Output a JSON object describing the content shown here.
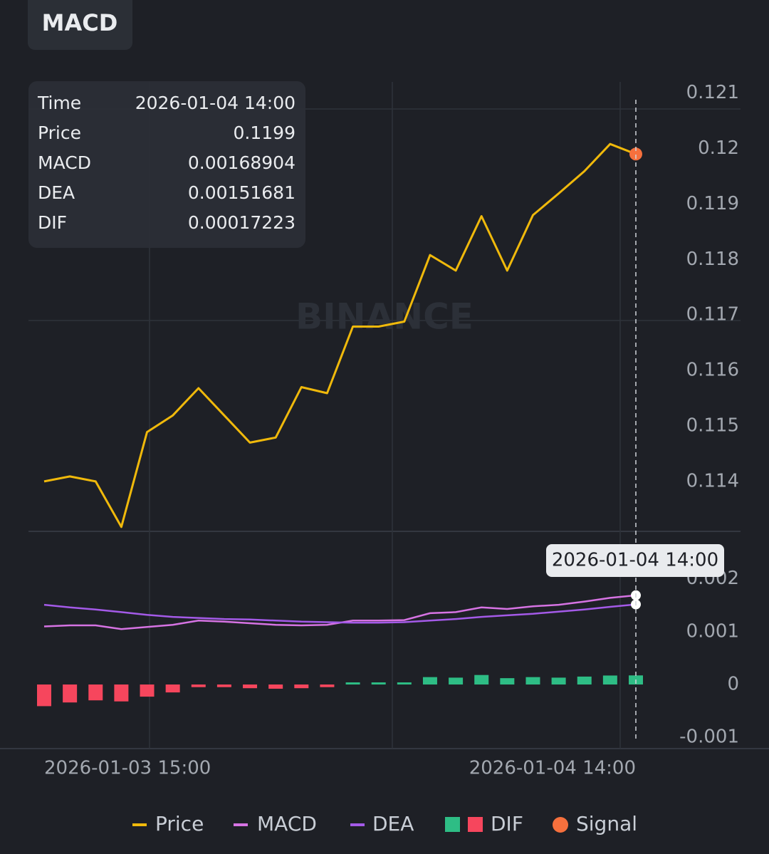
{
  "header": {
    "title": "MACD"
  },
  "watermark": "BINANCE",
  "tooltip": {
    "time_label": "Time"
  },
  "chart_data": [
    {
      "type": "line",
      "categories": [
        "2026-01-03 15:00",
        null,
        null,
        null,
        null,
        null,
        null,
        null,
        null,
        null,
        null,
        null,
        null,
        null,
        null,
        null,
        null,
        null,
        null,
        null,
        null,
        null,
        null,
        "2026-01-04 14:00"
      ],
      "ylim": [
        0.1131,
        0.1212
      ],
      "yticks": [
        0.114,
        0.115,
        0.116,
        0.117,
        0.118,
        0.119,
        0.12,
        0.121
      ],
      "series": [
        {
          "name": "Price",
          "color": "#f0b90b",
          "values": [
            0.114,
            0.11409,
            0.114,
            0.11318,
            0.11489,
            0.11519,
            0.11568,
            0.11519,
            0.1147,
            0.11479,
            0.1157,
            0.11559,
            0.11679,
            0.11679,
            0.11688,
            0.11808,
            0.1178,
            0.11878,
            0.1178,
            0.1188,
            0.11919,
            0.11959,
            0.12008,
            0.1199
          ]
        },
        {
          "name": "Signal",
          "color": "#f6703d",
          "values": [
            null,
            null,
            null,
            null,
            null,
            null,
            null,
            null,
            null,
            null,
            null,
            null,
            null,
            null,
            null,
            null,
            null,
            null,
            null,
            null,
            null,
            null,
            null,
            0.1199
          ]
        }
      ]
    },
    {
      "type": "macd",
      "ylim": [
        -0.0012,
        0.0029
      ],
      "yticks": [
        0.002,
        0.001,
        0,
        -0.001
      ],
      "series": [
        {
          "name": "MACD",
          "color": "#d673e3",
          "values": [
            0.0011,
            0.00112,
            0.00112,
            0.00105,
            0.00109,
            0.00113,
            0.00121,
            0.00119,
            0.00116,
            0.00113,
            0.00112,
            0.00113,
            0.00121,
            0.00121,
            0.00122,
            0.00135,
            0.00137,
            0.00146,
            0.00143,
            0.00148,
            0.00151,
            0.00157,
            0.00164,
            0.00168904
          ]
        },
        {
          "name": "DEA",
          "color": "#a45ae8",
          "values": [
            0.00151,
            0.00146,
            0.00142,
            0.00137,
            0.00132,
            0.00128,
            0.00126,
            0.00124,
            0.00123,
            0.00121,
            0.00119,
            0.00118,
            0.00117,
            0.00117,
            0.00118,
            0.00121,
            0.00124,
            0.00128,
            0.00131,
            0.00134,
            0.00138,
            0.00142,
            0.00147,
            0.00151681
          ]
        },
        {
          "name": "DIF",
          "positive_color": "#2ebd85",
          "negative_color": "#f6465d",
          "values": [
            -0.00041,
            -0.00034,
            -0.0003,
            -0.00032,
            -0.00023,
            -0.00015,
            -5e-05,
            -5e-05,
            -7e-05,
            -8e-05,
            -7e-05,
            -5e-05,
            4e-05,
            4e-05,
            4e-05,
            0.00014,
            0.00013,
            0.00018,
            0.00012,
            0.00014,
            0.00013,
            0.00015,
            0.00017,
            0.00017223
          ]
        }
      ]
    }
  ]
}
